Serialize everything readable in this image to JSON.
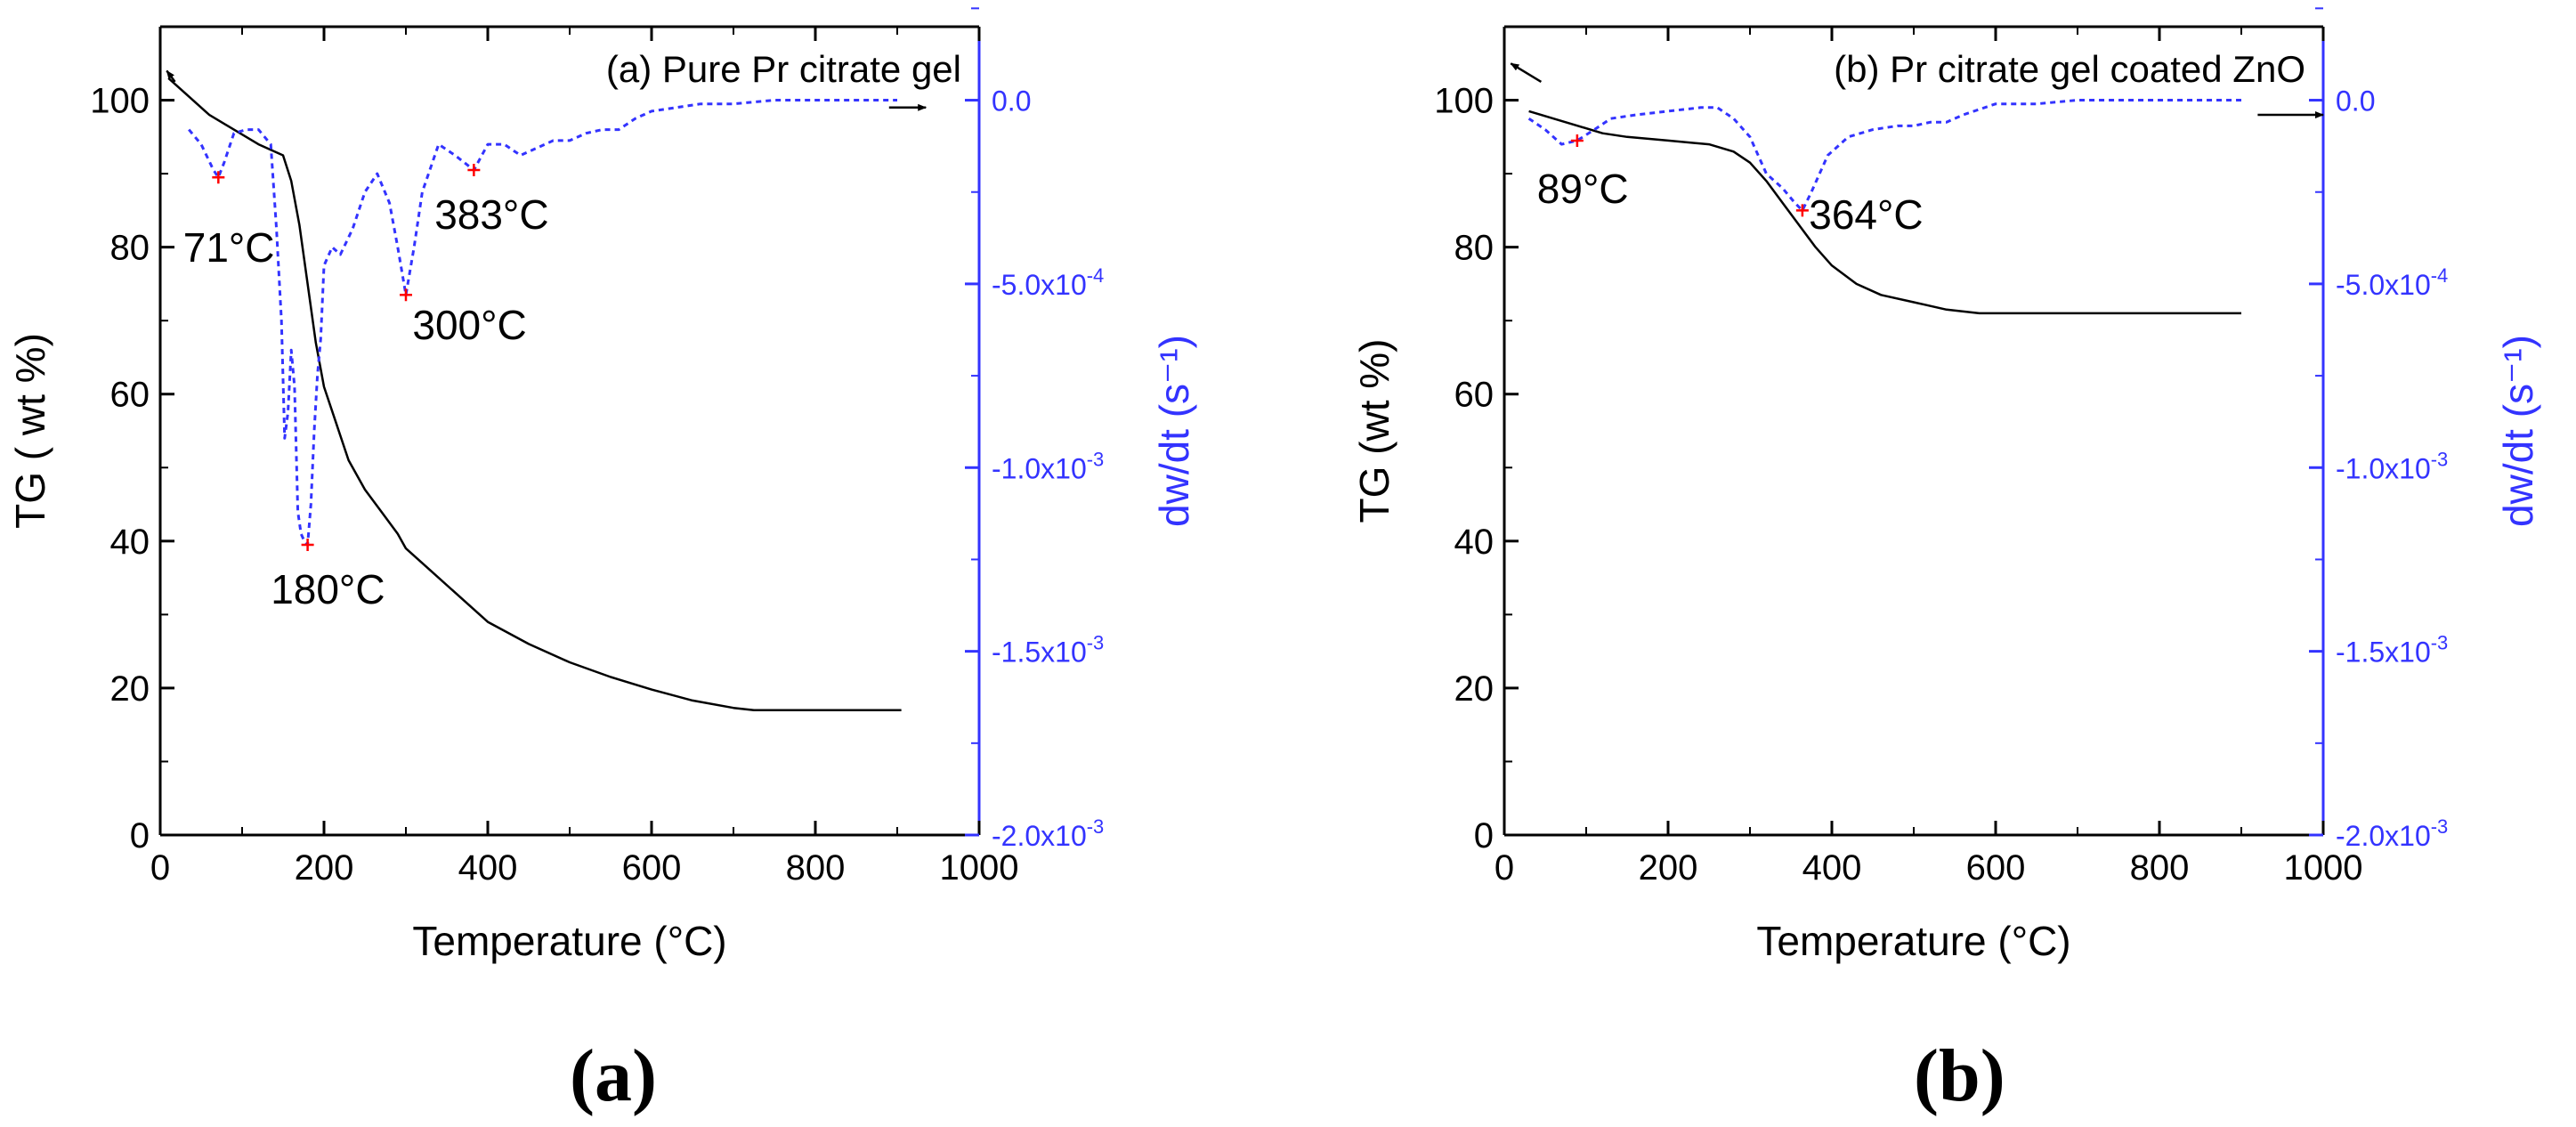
{
  "panel_captions": [
    "(a)",
    "(b)"
  ],
  "chart_data": [
    {
      "type": "line",
      "title": "(a) Pure Pr citrate gel",
      "xlabel": "Temperature (°C)",
      "ylabel_left": "TG ( wt %)",
      "ylabel_right": "dw/dt (s⁻¹)",
      "xlim": [
        0,
        1000
      ],
      "ylim_left": [
        0,
        110
      ],
      "ylim_right": [
        -0.002,
        0.0002
      ],
      "x_ticks": [
        0,
        200,
        400,
        600,
        800,
        1000
      ],
      "y_left_ticks": [
        0,
        20,
        40,
        60,
        80,
        100
      ],
      "y_right_ticks": [
        {
          "value": 0.0,
          "label": "0.0"
        },
        {
          "value": -0.0005,
          "label": "-5.0x10",
          "exp": "-4"
        },
        {
          "value": -0.001,
          "label": "-1.0x10",
          "exp": "-3"
        },
        {
          "value": -0.0015,
          "label": "-1.5x10",
          "exp": "-3"
        },
        {
          "value": -0.002,
          "label": "-2.0x10",
          "exp": "-3"
        }
      ],
      "grid": false,
      "series": [
        {
          "axis": "left",
          "color": "#000000",
          "style": "solid",
          "x": [
            10,
            30,
            60,
            90,
            120,
            150,
            160,
            170,
            180,
            190,
            200,
            215,
            230,
            250,
            270,
            290,
            300,
            310,
            330,
            360,
            400,
            450,
            500,
            550,
            600,
            650,
            700,
            725,
            750,
            800,
            850,
            905
          ],
          "y": [
            103,
            101,
            98,
            96,
            94,
            92.5,
            89,
            83,
            75,
            67,
            61,
            56,
            51,
            47,
            44,
            41,
            39,
            38,
            36,
            33,
            29,
            26,
            23.5,
            21.5,
            19.8,
            18.3,
            17.3,
            17,
            17,
            17,
            17,
            17
          ]
        },
        {
          "axis": "right",
          "color": "#3333ff",
          "style": "dashed",
          "x": [
            35,
            50,
            65,
            71,
            78,
            90,
            105,
            120,
            135,
            142,
            148,
            152,
            156,
            160,
            164,
            168,
            172,
            176,
            180,
            184,
            188,
            192,
            196,
            200,
            210,
            220,
            235,
            250,
            265,
            280,
            290,
            300,
            310,
            320,
            340,
            360,
            383,
            400,
            420,
            440,
            460,
            480,
            500,
            520,
            540,
            560,
            580,
            600,
            630,
            660,
            700,
            750,
            800,
            850,
            900
          ],
          "y": [
            -8e-05,
            -0.00012,
            -0.00019,
            -0.00021,
            -0.00017,
            -9e-05,
            -8e-05,
            -8e-05,
            -0.00012,
            -0.00035,
            -0.0006,
            -0.00092,
            -0.00085,
            -0.00068,
            -0.00078,
            -0.00112,
            -0.00118,
            -0.0012,
            -0.00121,
            -0.0011,
            -0.0009,
            -0.00075,
            -0.00065,
            -0.00045,
            -0.0004,
            -0.00042,
            -0.00035,
            -0.00025,
            -0.0002,
            -0.00028,
            -0.0004,
            -0.00053,
            -0.0004,
            -0.00025,
            -0.00012,
            -0.00015,
            -0.00019,
            -0.00012,
            -0.00012,
            -0.00015,
            -0.00013,
            -0.00011,
            -0.00011,
            -9e-05,
            -8e-05,
            -8e-05,
            -5e-05,
            -3e-05,
            -2e-05,
            -1e-05,
            -1e-05,
            0.0,
            0.0,
            0.0,
            0.0
          ]
        }
      ],
      "peaks": [
        {
          "x": 71,
          "y": -0.00021,
          "label": "71°C",
          "label_x": 28,
          "label_y": -0.00044
        },
        {
          "x": 180,
          "y": -0.00121,
          "label": "180°C",
          "label_x": 135,
          "label_y": -0.00137
        },
        {
          "x": 300,
          "y": -0.00053,
          "label": "300°C",
          "label_x": 308,
          "label_y": -0.00065
        },
        {
          "x": 383,
          "y": -0.00019,
          "label": "383°C",
          "label_x": 335,
          "label_y": -0.00035
        }
      ],
      "arrows": [
        {
          "axis": "left",
          "from": [
            18,
            102.5
          ],
          "to": [
            8,
            104
          ]
        },
        {
          "axis": "right",
          "from": [
            890,
            -2e-05
          ],
          "to": [
            935,
            -2e-05
          ]
        }
      ],
      "peak_color": "#ff0000"
    },
    {
      "type": "line",
      "title": "(b) Pr citrate gel coated ZnO",
      "xlabel": "Temperature (°C)",
      "ylabel_left": "TG (wt %)",
      "ylabel_right": "dw/dt (s⁻¹)",
      "xlim": [
        0,
        1000
      ],
      "ylim_left": [
        0,
        110
      ],
      "ylim_right": [
        -0.002,
        0.0002
      ],
      "x_ticks": [
        0,
        200,
        400,
        600,
        800,
        1000
      ],
      "y_left_ticks": [
        0,
        20,
        40,
        60,
        80,
        100
      ],
      "y_right_ticks": [
        {
          "value": 0.0,
          "label": "0.0"
        },
        {
          "value": -0.0005,
          "label": "-5.0x10",
          "exp": "-4"
        },
        {
          "value": -0.001,
          "label": "-1.0x10",
          "exp": "-3"
        },
        {
          "value": -0.0015,
          "label": "-1.5x10",
          "exp": "-3"
        },
        {
          "value": -0.002,
          "label": "-2.0x10",
          "exp": "-3"
        }
      ],
      "grid": false,
      "series": [
        {
          "axis": "left",
          "color": "#000000",
          "style": "solid",
          "x": [
            30,
            60,
            90,
            120,
            150,
            200,
            250,
            280,
            300,
            320,
            340,
            360,
            380,
            400,
            430,
            460,
            500,
            540,
            580,
            610,
            650,
            700,
            800,
            900
          ],
          "y": [
            98.5,
            97.5,
            96.5,
            95.5,
            95,
            94.5,
            94,
            93,
            91.5,
            89,
            86,
            83,
            80,
            77.5,
            75,
            73.5,
            72.5,
            71.5,
            71,
            71,
            71,
            71,
            71,
            71
          ]
        },
        {
          "axis": "right",
          "color": "#3333ff",
          "style": "dashed",
          "x": [
            30,
            50,
            70,
            89,
            110,
            130,
            160,
            200,
            240,
            260,
            280,
            300,
            320,
            340,
            355,
            364,
            375,
            395,
            420,
            450,
            480,
            500,
            520,
            540,
            560,
            600,
            650,
            700,
            800,
            900
          ],
          "y": [
            -5e-05,
            -8e-05,
            -0.00012,
            -0.00011,
            -8e-05,
            -5e-05,
            -4e-05,
            -3e-05,
            -2e-05,
            -2e-05,
            -5e-05,
            -0.0001,
            -0.0002,
            -0.00024,
            -0.00028,
            -0.0003,
            -0.00025,
            -0.00015,
            -0.0001,
            -8e-05,
            -7e-05,
            -7e-05,
            -6e-05,
            -6e-05,
            -4e-05,
            -1e-05,
            -1e-05,
            0.0,
            0.0,
            0.0
          ]
        }
      ],
      "peaks": [
        {
          "x": 89,
          "y": -0.00011,
          "label": "89°C",
          "label_x": 40,
          "label_y": -0.00028
        },
        {
          "x": 364,
          "y": -0.0003,
          "label": "364°C",
          "label_x": 372,
          "label_y": -0.00035
        }
      ],
      "arrows": [
        {
          "axis": "left",
          "from": [
            45,
            102.5
          ],
          "to": [
            8,
            105
          ]
        },
        {
          "axis": "right",
          "from": [
            920,
            -4e-05
          ],
          "to": [
            1000,
            -4e-05
          ]
        }
      ],
      "peak_color": "#ff0000"
    }
  ]
}
